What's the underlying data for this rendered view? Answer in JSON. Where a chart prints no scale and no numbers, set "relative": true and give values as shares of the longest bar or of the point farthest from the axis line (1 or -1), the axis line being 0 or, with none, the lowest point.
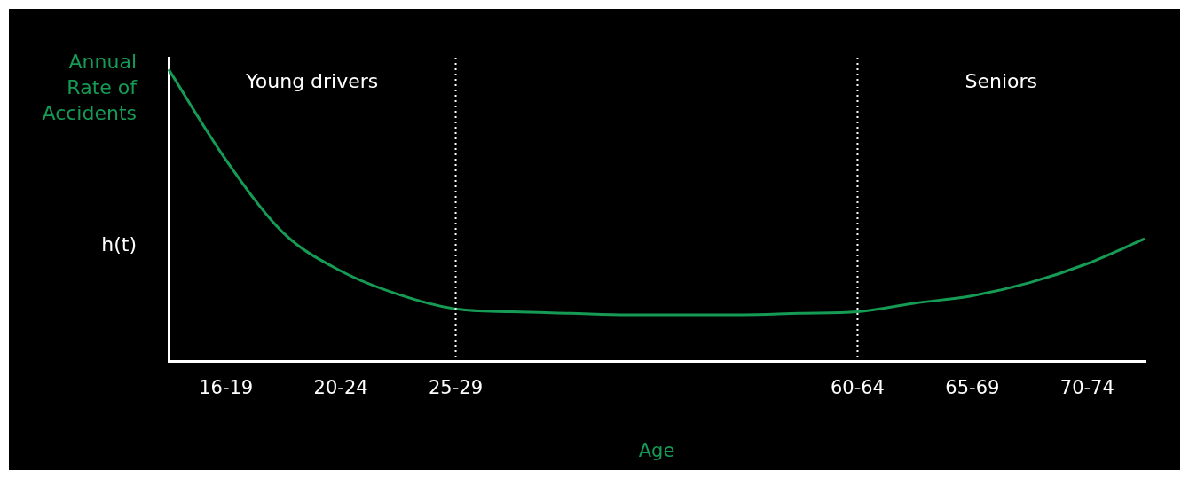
{
  "chart_data": {
    "type": "line",
    "relative": true,
    "ylabel": "Annual Rate of Accidents",
    "xlabel": "Age",
    "categories": [
      null,
      "16-19",
      null,
      "20-24",
      null,
      "25-29",
      null,
      null,
      null,
      null,
      null,
      null,
      "60-64",
      null,
      "65-69",
      null,
      "70-74",
      null
    ],
    "series": [
      {
        "color": "#169b55",
        "values": [
          1.0,
          0.69,
          0.44,
          0.31,
          0.23,
          0.18,
          0.17,
          0.165,
          0.16,
          0.16,
          0.16,
          0.165,
          0.17,
          0.2,
          0.225,
          0.27,
          0.335,
          0.42
        ]
      }
    ],
    "ref_lines": [
      {
        "axis": "x",
        "value": "25-29",
        "color": "#ffffff",
        "line_style": "dotted"
      },
      {
        "axis": "x",
        "value": "60-64",
        "color": "#ffffff",
        "line_style": "dotted"
      }
    ],
    "annotations": [
      "Young drivers",
      "Seniors",
      "h(t)"
    ],
    "grid": false,
    "legend": false
  }
}
